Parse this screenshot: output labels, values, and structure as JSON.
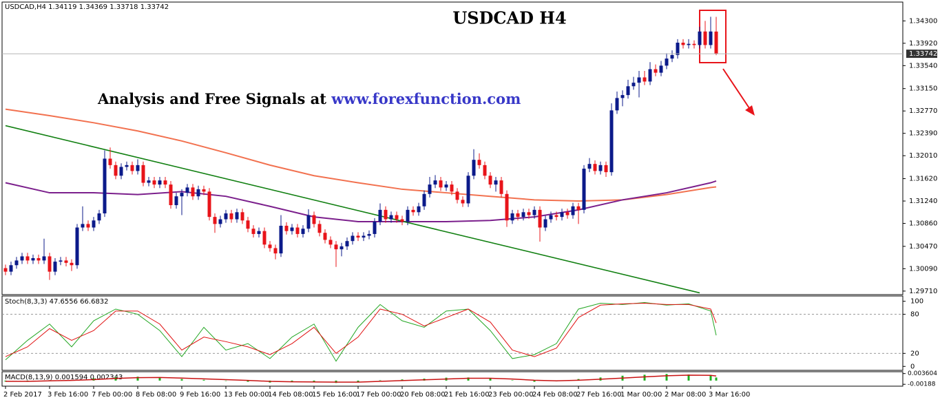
{
  "chart_data": [
    {
      "type": "candlestick",
      "header": "USDCAD,H4  1.34119 1.34369 1.33718 1.33742",
      "title": "USDCAD H4",
      "subtitle": "Analysis and Free Signals at",
      "link": "www.forexfunction.com",
      "up_color": "#0b1a8a",
      "down_color": "#e8141a",
      "categories": [
        "2 Feb 2017",
        null,
        null,
        null,
        null,
        null,
        null,
        null,
        "3 Feb 16:00",
        null,
        null,
        null,
        null,
        null,
        null,
        null,
        "7 Feb 00:00",
        null,
        null,
        null,
        null,
        null,
        null,
        null,
        "8 Feb 08:00",
        null,
        null,
        null,
        null,
        null,
        null,
        null,
        "9 Feb 16:00",
        null,
        null,
        null,
        null,
        null,
        null,
        null,
        "13 Feb 00:00",
        null,
        null,
        null,
        null,
        null,
        null,
        null,
        "14 Feb 08:00",
        null,
        null,
        null,
        null,
        null,
        null,
        null,
        "15 Feb 16:00",
        null,
        null,
        null,
        null,
        null,
        null,
        null,
        "17 Feb 00:00",
        null,
        null,
        null,
        null,
        null,
        null,
        null,
        "20 Feb 08:00",
        null,
        null,
        null,
        null,
        null,
        null,
        null,
        "21 Feb 16:00",
        null,
        null,
        null,
        null,
        null,
        null,
        null,
        "23 Feb 00:00",
        null,
        null,
        null,
        null,
        null,
        null,
        null,
        "24 Feb 08:00",
        null,
        null,
        null,
        null,
        null,
        null,
        null,
        "27 Feb 16:00",
        null,
        null,
        null,
        null,
        null,
        null,
        null,
        "1 Mar 00:00",
        null,
        null,
        null,
        null,
        null,
        null,
        null,
        "2 Mar 08:00",
        null,
        null,
        null,
        null,
        null,
        null,
        null,
        "3 Mar 16:00",
        null
      ],
      "open": [
        1.301,
        1.3004,
        1.3015,
        1.3023,
        1.303,
        1.3023,
        1.3027,
        1.3023,
        1.303,
        1.3004,
        1.3021,
        1.3023,
        1.3019,
        1.3015,
        1.3079,
        1.3085,
        1.3079,
        1.3091,
        1.3103,
        1.3196,
        1.3185,
        1.3167,
        1.3182,
        1.3185,
        1.3175,
        1.3185,
        1.3155,
        1.3159,
        1.3152,
        1.3159,
        1.3152,
        1.3117,
        1.3132,
        1.3138,
        1.3147,
        1.3132,
        1.3144,
        1.314,
        1.3097,
        1.3085,
        1.3093,
        1.3103,
        1.3093,
        1.3105,
        1.3091,
        1.3077,
        1.3068,
        1.3073,
        1.305,
        1.3044,
        1.3035,
        1.3082,
        1.3073,
        1.3079,
        1.3068,
        1.3077,
        1.31,
        1.3085,
        1.307,
        1.3058,
        1.305,
        1.3042,
        1.3047,
        1.3056,
        1.3065,
        1.3062,
        1.3065,
        1.3068,
        1.3089,
        1.3109,
        1.3093,
        1.31,
        1.3093,
        1.3089,
        1.3109,
        1.3105,
        1.3115,
        1.3136,
        1.3152,
        1.3159,
        1.3147,
        1.3152,
        1.314,
        1.3126,
        1.312,
        1.3167,
        1.3194,
        1.3185,
        1.3167,
        1.3152,
        1.3159,
        1.3136,
        1.3091,
        1.3103,
        1.3097,
        1.3105,
        1.31,
        1.3109,
        1.3079,
        1.3093,
        1.31,
        1.3097,
        1.3105,
        1.31,
        1.3115,
        1.3109,
        1.3179,
        1.3187,
        1.3175,
        1.3185,
        1.3173,
        1.3278,
        1.3299,
        1.3304,
        1.3319,
        1.3325,
        1.3334,
        1.3327,
        1.3348,
        1.3342,
        1.3354,
        1.3366,
        1.3372,
        1.3393,
        1.3389,
        1.3391,
        1.3389,
        1.3412,
        1.3389,
        1.34119
      ],
      "high": [
        1.3016,
        1.3021,
        1.3029,
        1.3036,
        1.3036,
        1.3033,
        1.3033,
        1.306,
        1.3036,
        1.3027,
        1.3029,
        1.3029,
        1.3025,
        1.3085,
        1.3115,
        1.3091,
        1.3097,
        1.3109,
        1.321,
        1.3215,
        1.3191,
        1.3188,
        1.3191,
        1.3191,
        1.3195,
        1.3191,
        1.3165,
        1.3165,
        1.3165,
        1.3165,
        1.3158,
        1.3138,
        1.3144,
        1.3153,
        1.3153,
        1.315,
        1.315,
        1.3146,
        1.3103,
        1.3099,
        1.3109,
        1.3109,
        1.3111,
        1.3111,
        1.3097,
        1.3083,
        1.3079,
        1.3079,
        1.3056,
        1.305,
        1.31,
        1.3088,
        1.3085,
        1.3085,
        1.3083,
        1.311,
        1.3106,
        1.3091,
        1.3076,
        1.3064,
        1.3056,
        1.3053,
        1.3062,
        1.3071,
        1.3071,
        1.3071,
        1.3074,
        1.3095,
        1.312,
        1.3115,
        1.3106,
        1.3106,
        1.3099,
        1.3115,
        1.3115,
        1.3121,
        1.3142,
        1.3165,
        1.3168,
        1.3165,
        1.3158,
        1.3158,
        1.3146,
        1.3132,
        1.3173,
        1.3212,
        1.3205,
        1.3191,
        1.3173,
        1.3165,
        1.3165,
        1.3142,
        1.3109,
        1.3109,
        1.3111,
        1.3111,
        1.3115,
        1.3115,
        1.3099,
        1.3106,
        1.3106,
        1.3111,
        1.3111,
        1.3121,
        1.3121,
        1.3185,
        1.3197,
        1.3193,
        1.3191,
        1.3191,
        1.329,
        1.331,
        1.3312,
        1.333,
        1.3335,
        1.3345,
        1.3345,
        1.336,
        1.3356,
        1.3362,
        1.3375,
        1.338,
        1.3399,
        1.3399,
        1.3399,
        1.3397,
        1.342,
        1.343,
        1.3437,
        1.34369
      ],
      "low": [
        1.2998,
        1.2998,
        1.3009,
        1.3017,
        1.3017,
        1.3017,
        1.3017,
        1.3017,
        1.299,
        1.2998,
        1.3015,
        1.3013,
        1.3005,
        1.3009,
        1.3073,
        1.3073,
        1.3073,
        1.3085,
        1.3097,
        1.3179,
        1.3161,
        1.3161,
        1.3176,
        1.3169,
        1.3169,
        1.3149,
        1.3149,
        1.3146,
        1.3146,
        1.3146,
        1.3111,
        1.3111,
        1.31,
        1.3132,
        1.3126,
        1.3126,
        1.3134,
        1.3091,
        1.307,
        1.3079,
        1.3087,
        1.3087,
        1.3087,
        1.3085,
        1.3071,
        1.3062,
        1.3062,
        1.3044,
        1.3038,
        1.3025,
        1.3029,
        1.3067,
        1.3067,
        1.3062,
        1.3062,
        1.3071,
        1.3079,
        1.3064,
        1.3052,
        1.3044,
        1.3012,
        1.303,
        1.3041,
        1.305,
        1.3056,
        1.3056,
        1.3059,
        1.3062,
        1.3083,
        1.3087,
        1.3087,
        1.3087,
        1.3083,
        1.3083,
        1.3099,
        1.3099,
        1.3109,
        1.313,
        1.3146,
        1.3141,
        1.3141,
        1.3134,
        1.312,
        1.3114,
        1.3114,
        1.3161,
        1.3179,
        1.3161,
        1.3146,
        1.314,
        1.313,
        1.308,
        1.3085,
        1.3091,
        1.3091,
        1.3094,
        1.3094,
        1.3055,
        1.3073,
        1.3087,
        1.3091,
        1.3091,
        1.3094,
        1.3094,
        1.3085,
        1.3103,
        1.3173,
        1.3169,
        1.3169,
        1.3165,
        1.3167,
        1.3272,
        1.3285,
        1.3298,
        1.3313,
        1.33,
        1.3321,
        1.3321,
        1.3336,
        1.3336,
        1.3348,
        1.336,
        1.3366,
        1.3383,
        1.3383,
        1.3383,
        1.3383,
        1.3383,
        1.3383,
        1.33718
      ],
      "close": [
        1.3004,
        1.3015,
        1.3023,
        1.303,
        1.3023,
        1.3027,
        1.3023,
        1.303,
        1.3004,
        1.3021,
        1.3023,
        1.3019,
        1.3015,
        1.3079,
        1.3085,
        1.3079,
        1.3091,
        1.3103,
        1.3196,
        1.3185,
        1.3167,
        1.3182,
        1.3185,
        1.3175,
        1.3185,
        1.3155,
        1.3159,
        1.3152,
        1.3159,
        1.3152,
        1.3117,
        1.3132,
        1.3138,
        1.3147,
        1.3132,
        1.3144,
        1.314,
        1.3097,
        1.3085,
        1.3093,
        1.3103,
        1.3093,
        1.3105,
        1.3091,
        1.3077,
        1.3068,
        1.3073,
        1.305,
        1.3044,
        1.3035,
        1.3082,
        1.3073,
        1.3079,
        1.3068,
        1.3077,
        1.31,
        1.3085,
        1.307,
        1.3058,
        1.305,
        1.3042,
        1.3047,
        1.3056,
        1.3065,
        1.3062,
        1.3065,
        1.3068,
        1.3089,
        1.3109,
        1.3093,
        1.31,
        1.3093,
        1.3089,
        1.3109,
        1.3105,
        1.3115,
        1.3136,
        1.3152,
        1.3159,
        1.3147,
        1.3152,
        1.314,
        1.3126,
        1.312,
        1.3167,
        1.3194,
        1.3185,
        1.3167,
        1.3152,
        1.3159,
        1.3136,
        1.3091,
        1.3103,
        1.3097,
        1.3105,
        1.31,
        1.3109,
        1.3079,
        1.3093,
        1.31,
        1.3097,
        1.3105,
        1.31,
        1.3115,
        1.3109,
        1.3179,
        1.3187,
        1.3175,
        1.3185,
        1.3173,
        1.3278,
        1.3299,
        1.3304,
        1.3319,
        1.3325,
        1.3334,
        1.3327,
        1.3348,
        1.3342,
        1.3354,
        1.3366,
        1.3372,
        1.3393,
        1.3389,
        1.3391,
        1.3389,
        1.3412,
        1.3389,
        1.3412,
        1.33742
      ],
      "lines": [
        {
          "color": "#f2714f",
          "x": [
            0,
            8,
            16,
            24,
            32,
            40,
            48,
            56,
            64,
            72,
            80,
            88,
            96,
            104,
            112,
            120,
            128,
            129
          ],
          "values": [
            1.328,
            1.3269,
            1.3257,
            1.3243,
            1.3226,
            1.3206,
            1.3185,
            1.3167,
            1.3155,
            1.3144,
            1.3138,
            1.3132,
            1.3126,
            1.3124,
            1.3126,
            1.3135,
            1.3147,
            1.3148
          ]
        },
        {
          "color": "#7b1f8c",
          "x": [
            0,
            8,
            16,
            24,
            32,
            40,
            48,
            56,
            64,
            72,
            80,
            88,
            96,
            104,
            112,
            120,
            128,
            129
          ],
          "values": [
            1.3155,
            1.3138,
            1.3138,
            1.3135,
            1.314,
            1.3132,
            1.3115,
            1.3097,
            1.3089,
            1.3089,
            1.3089,
            1.3091,
            1.3097,
            1.3109,
            1.3126,
            1.3138,
            1.3155,
            1.3158
          ]
        },
        {
          "color": "#128012",
          "x": [
            0,
            126
          ],
          "values": [
            1.3252,
            1.2968
          ]
        }
      ],
      "last_price": {
        "value": 1.33742,
        "label": "1.33742"
      },
      "ylim": [
        1.2965,
        1.3462
      ],
      "yticks": [
        {
          "value": 1.343,
          "label": "1.34300"
        },
        {
          "value": 1.3392,
          "label": "1.33920"
        },
        {
          "value": 1.3354,
          "label": "1.33540"
        },
        {
          "value": 1.3315,
          "label": "1.33150"
        },
        {
          "value": 1.3277,
          "label": "1.32770"
        },
        {
          "value": 1.3239,
          "label": "1.32390"
        },
        {
          "value": 1.3201,
          "label": "1.32010"
        },
        {
          "value": 1.3162,
          "label": "1.31620"
        },
        {
          "value": 1.3124,
          "label": "1.31240"
        },
        {
          "value": 1.3086,
          "label": "1.30860"
        },
        {
          "value": 1.3047,
          "label": "1.30470"
        },
        {
          "value": 1.3009,
          "label": "1.30090"
        },
        {
          "value": 1.2971,
          "label": "1.29710"
        }
      ]
    },
    {
      "type": "line",
      "header": "Stoch(8,3,3) 47.6556 66.6832",
      "x": [
        0,
        4,
        8,
        12,
        16,
        20,
        24,
        28,
        32,
        36,
        40,
        44,
        48,
        52,
        56,
        60,
        64,
        68,
        72,
        76,
        80,
        84,
        88,
        92,
        96,
        100,
        104,
        108,
        112,
        116,
        120,
        124,
        128,
        129
      ],
      "series": [
        {
          "color": "#22a622",
          "values": [
            10,
            40,
            65,
            30,
            70,
            88,
            80,
            55,
            15,
            60,
            25,
            35,
            12,
            45,
            65,
            8,
            60,
            95,
            70,
            60,
            85,
            88,
            55,
            12,
            18,
            35,
            88,
            97,
            95,
            98,
            94,
            96,
            85,
            47.6556
          ]
        },
        {
          "color": "#e01010",
          "values": [
            15,
            30,
            58,
            40,
            55,
            85,
            85,
            65,
            25,
            45,
            38,
            30,
            18,
            35,
            60,
            20,
            45,
            88,
            80,
            62,
            75,
            88,
            68,
            25,
            15,
            28,
            75,
            94,
            96,
            97,
            95,
            95,
            88,
            66.6832
          ]
        }
      ],
      "levels": [
        80,
        20
      ],
      "ylim": [
        -5,
        107
      ],
      "yticks": [
        100,
        80,
        20,
        0
      ]
    },
    {
      "type": "macd",
      "header": "MACD(8,13,9) 0.001594 0.002343",
      "x": [
        0,
        4,
        8,
        12,
        16,
        20,
        24,
        28,
        32,
        36,
        40,
        44,
        48,
        52,
        56,
        60,
        64,
        68,
        72,
        76,
        80,
        84,
        88,
        92,
        96,
        100,
        104,
        108,
        112,
        116,
        120,
        124,
        128,
        129
      ],
      "histogram": {
        "color": "#1fb01f",
        "values": [
          -0.0005,
          -0.0003,
          0.0002,
          0.0003,
          0.0012,
          0.0018,
          0.002,
          0.0016,
          0.0008,
          0.0004,
          0,
          -0.0006,
          -0.001,
          -0.0008,
          -0.0006,
          -0.0012,
          -0.0006,
          0.0002,
          0.0006,
          0.001,
          0.0015,
          0.0016,
          0.0012,
          0.0002,
          -0.0006,
          -0.0004,
          0.0008,
          0.0016,
          0.0025,
          0.003,
          0.0034,
          0.0031,
          0.0026,
          0.001594
        ]
      },
      "signal": {
        "color": "#c81010",
        "values": [
          -0.0004,
          -0.0004,
          -0.0001,
          0.0001,
          0.0005,
          0.0011,
          0.0015,
          0.0016,
          0.0013,
          0.0009,
          0.0005,
          0.0001,
          -0.0004,
          -0.0006,
          -0.0007,
          -0.0008,
          -0.0008,
          -0.0004,
          0,
          0.0004,
          0.0008,
          0.0012,
          0.0012,
          0.0008,
          0.0002,
          -0.0001,
          0.0002,
          0.0007,
          0.0013,
          0.0019,
          0.0025,
          0.0028,
          0.0027,
          0.002343
        ]
      },
      "ylim": [
        -0.0025,
        0.0042
      ],
      "yticks": [
        0.003604,
        -0.00188
      ]
    }
  ]
}
